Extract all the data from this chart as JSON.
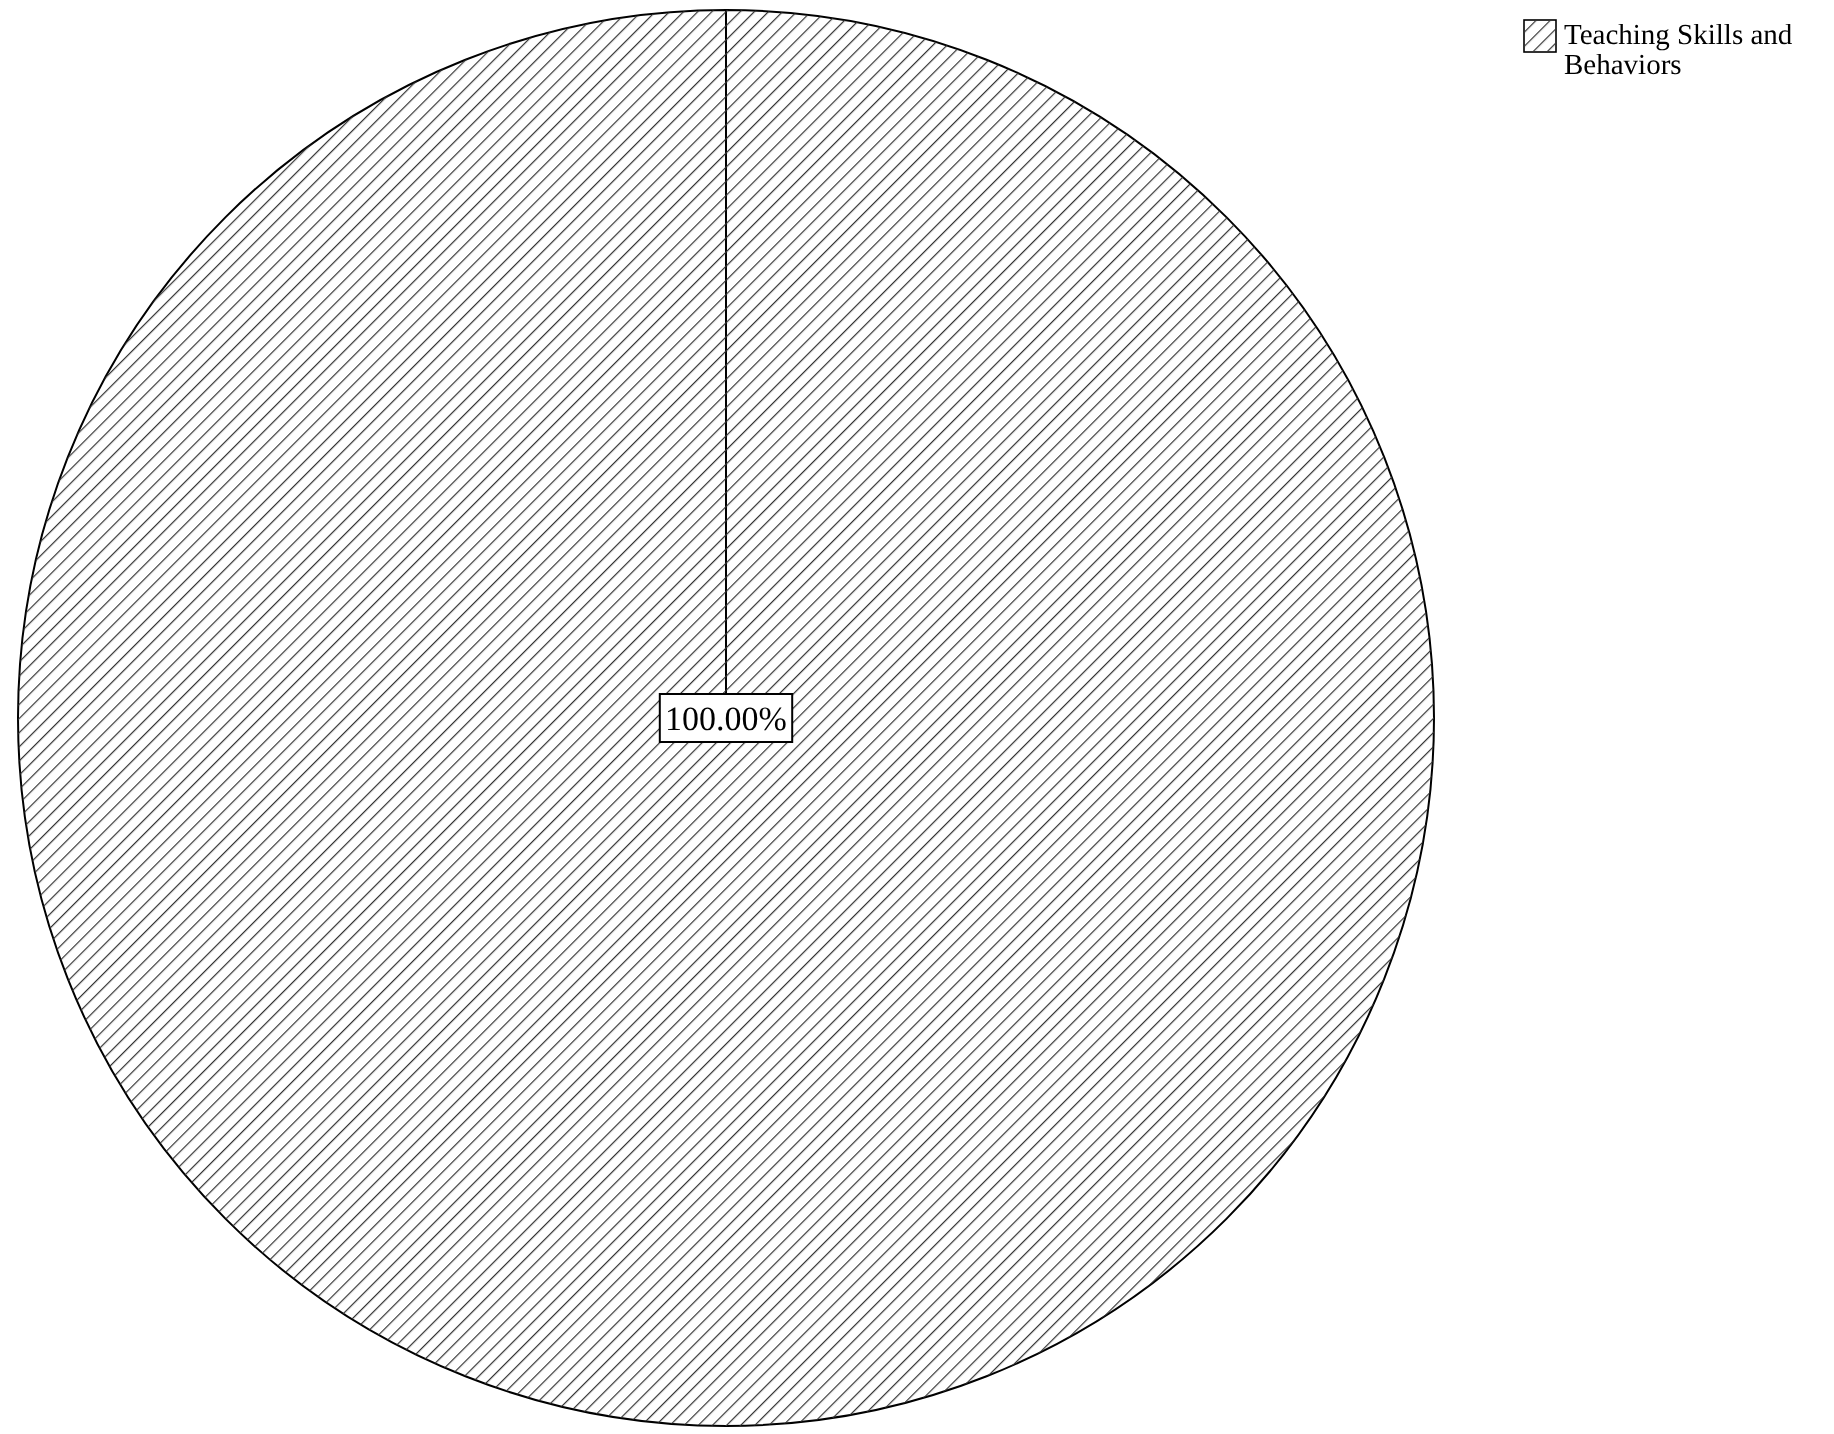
{
  "chart_data": {
    "type": "pie",
    "categories": [
      "Teaching Skills and Behaviors"
    ],
    "values": [
      100
    ],
    "colors": [
      "#ffffff"
    ],
    "value_labels": [
      "100.00%"
    ],
    "legend": "top right"
  }
}
